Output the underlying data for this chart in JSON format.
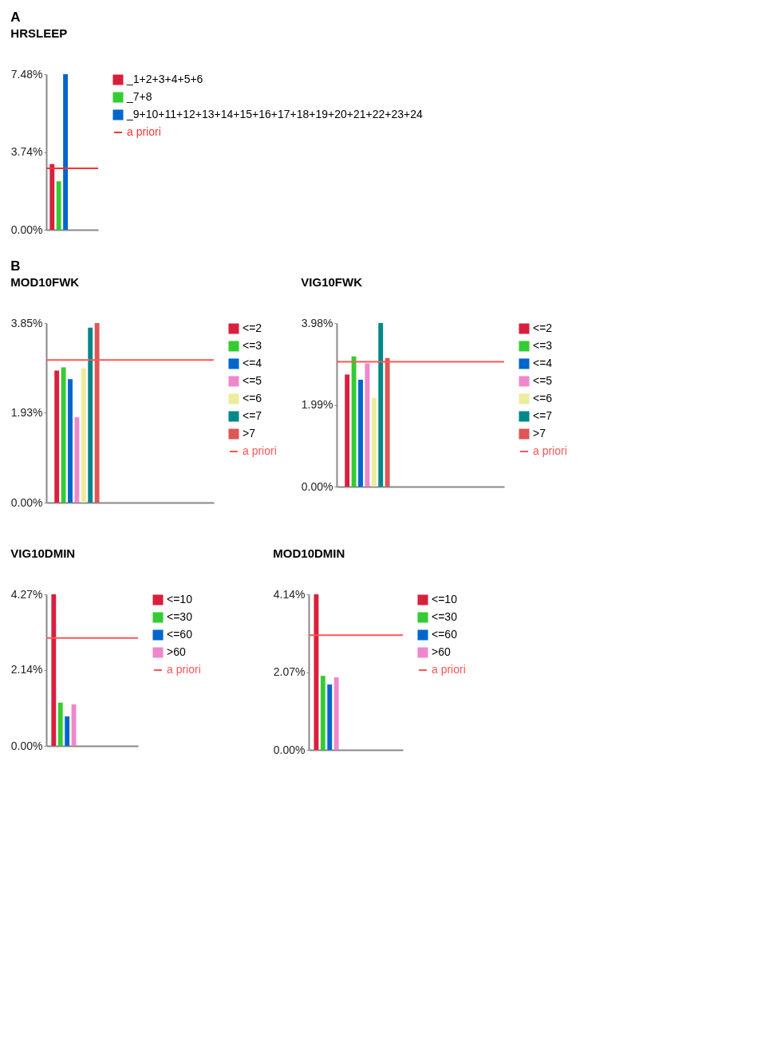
{
  "chart_data": [
    {
      "type": "bar",
      "title": "HRSLEEP",
      "annotations": [
        "A"
      ],
      "categories": [
        null
      ],
      "series": [
        {
          "name": "_1+2+3+4+5+6",
          "color": "#d8203c",
          "values": [
            3.16
          ]
        },
        {
          "name": "_7+8",
          "color": "#33cc33",
          "values": [
            2.33
          ]
        },
        {
          "name": "_9+10+11+12+13+14+15+16+17+18+19+20+21+22+23+24",
          "color": "#0066cc",
          "values": [
            7.48
          ]
        }
      ],
      "ylim": [
        0,
        7.48
      ],
      "yticks": [
        {
          "value": 0,
          "label": "0.00%"
        },
        {
          "value": 3.74,
          "label": "3.74%"
        },
        {
          "value": 7.48,
          "label": "7.48%"
        }
      ],
      "tick_labels": "y",
      "legend": "right",
      "ref_lines": [
        {
          "axis": "y",
          "value": 2.95,
          "label": "a priori",
          "color": "#ff3333"
        }
      ]
    },
    {
      "type": "bar",
      "title": "MOD10FWK",
      "annotations": [
        "B"
      ],
      "categories": [
        null
      ],
      "series": [
        {
          "name": "<=2",
          "color": "#d8203c",
          "values": [
            2.83
          ]
        },
        {
          "name": "<=3",
          "color": "#33cc33",
          "values": [
            2.9
          ]
        },
        {
          "name": "<=4",
          "color": "#0066cc",
          "values": [
            2.65
          ]
        },
        {
          "name": "<=5",
          "color": "#ee88cc",
          "values": [
            1.83
          ]
        },
        {
          "name": "<=6",
          "color": "#ecec9c",
          "values": [
            2.88
          ]
        },
        {
          "name": "<=7",
          "color": "#008888",
          "values": [
            3.75
          ]
        },
        {
          "name": ">7",
          "color": "#e05555",
          "values": [
            3.85
          ]
        }
      ],
      "ylim": [
        0,
        3.85
      ],
      "yticks": [
        {
          "value": 0,
          "label": "0.00%"
        },
        {
          "value": 1.93,
          "label": "1.93%"
        },
        {
          "value": 3.85,
          "label": "3.85%"
        }
      ],
      "tick_labels": "y",
      "legend": "right",
      "ref_lines": [
        {
          "axis": "y",
          "value": 3.06,
          "label": "a priori",
          "color": "#ff5555"
        }
      ]
    },
    {
      "type": "bar",
      "title": "VIG10FWK",
      "categories": [
        null
      ],
      "series": [
        {
          "name": "<=2",
          "color": "#d8203c",
          "values": [
            2.73
          ]
        },
        {
          "name": "<=3",
          "color": "#33cc33",
          "values": [
            3.17
          ]
        },
        {
          "name": "<=4",
          "color": "#0066cc",
          "values": [
            2.6
          ]
        },
        {
          "name": "<=5",
          "color": "#ee88cc",
          "values": [
            3.0
          ]
        },
        {
          "name": "<=6",
          "color": "#ecec9c",
          "values": [
            2.16
          ]
        },
        {
          "name": "<=7",
          "color": "#008888",
          "values": [
            3.98
          ]
        },
        {
          "name": ">7",
          "color": "#e05555",
          "values": [
            3.13
          ]
        }
      ],
      "ylim": [
        0,
        3.98
      ],
      "yticks": [
        {
          "value": 0,
          "label": "0.00%"
        },
        {
          "value": 1.99,
          "label": "1.99%"
        },
        {
          "value": 3.98,
          "label": "3.98%"
        }
      ],
      "tick_labels": "y",
      "legend": "right",
      "ref_lines": [
        {
          "axis": "y",
          "value": 3.04,
          "label": "a priori",
          "color": "#ff5555"
        }
      ]
    },
    {
      "type": "bar",
      "title": "VIG10DMIN",
      "categories": [
        null
      ],
      "series": [
        {
          "name": "<=10",
          "color": "#d8203c",
          "values": [
            4.27
          ]
        },
        {
          "name": "<=30",
          "color": "#33cc33",
          "values": [
            1.22
          ]
        },
        {
          "name": "<=60",
          "color": "#0066cc",
          "values": [
            0.83
          ]
        },
        {
          "name": ">60",
          "color": "#ee88cc",
          "values": [
            1.17
          ]
        }
      ],
      "ylim": [
        0,
        4.27
      ],
      "yticks": [
        {
          "value": 0,
          "label": "0.00%"
        },
        {
          "value": 2.14,
          "label": "2.14%"
        },
        {
          "value": 4.27,
          "label": "4.27%"
        }
      ],
      "tick_labels": "y",
      "legend": "right",
      "ref_lines": [
        {
          "axis": "y",
          "value": 3.04,
          "label": "a priori",
          "color": "#ff5555"
        }
      ]
    },
    {
      "type": "bar",
      "title": "MOD10DMIN",
      "categories": [
        null
      ],
      "series": [
        {
          "name": "<=10",
          "color": "#d8203c",
          "values": [
            4.14
          ]
        },
        {
          "name": "<=30",
          "color": "#33cc33",
          "values": [
            1.97
          ]
        },
        {
          "name": "<=60",
          "color": "#0066cc",
          "values": [
            1.74
          ]
        },
        {
          "name": ">60",
          "color": "#ee88cc",
          "values": [
            1.93
          ]
        }
      ],
      "ylim": [
        0,
        4.14
      ],
      "yticks": [
        {
          "value": 0,
          "label": "0.00%"
        },
        {
          "value": 2.07,
          "label": "2.07%"
        },
        {
          "value": 4.14,
          "label": "4.14%"
        }
      ],
      "tick_labels": "y",
      "legend": "right",
      "ref_lines": [
        {
          "axis": "y",
          "value": 3.05,
          "label": "a priori",
          "color": "#ff5555"
        }
      ]
    }
  ]
}
